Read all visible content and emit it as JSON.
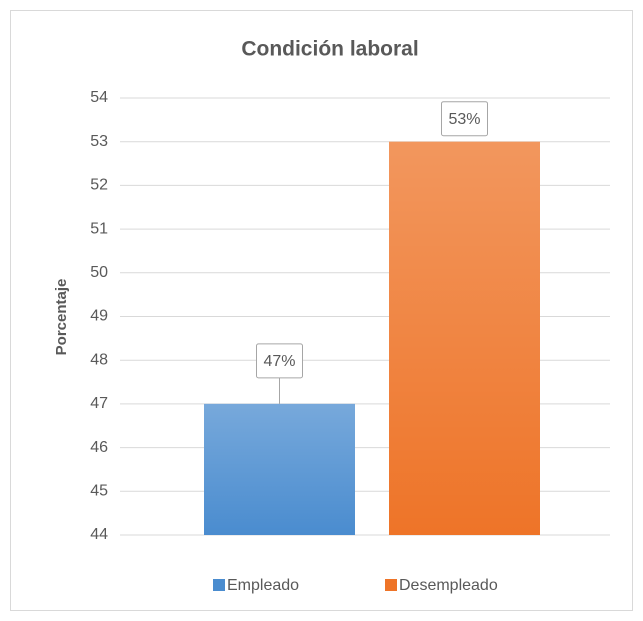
{
  "chart_data": {
    "type": "bar",
    "title": "Condición laboral",
    "ylabel": "Porcentaje",
    "series": [
      {
        "name": "Empleado",
        "color": "#4a8ccf",
        "values": [
          47
        ],
        "value_labels": [
          "47%"
        ]
      },
      {
        "name": "Desempleado",
        "color": "#ee7428",
        "values": [
          53
        ],
        "value_labels": [
          "53%"
        ]
      }
    ],
    "ylim": [
      44,
      54
    ],
    "yticks": [
      44,
      45,
      46,
      47,
      48,
      49,
      50,
      51,
      52,
      53,
      54
    ],
    "grid": true,
    "legend": "bottom"
  }
}
